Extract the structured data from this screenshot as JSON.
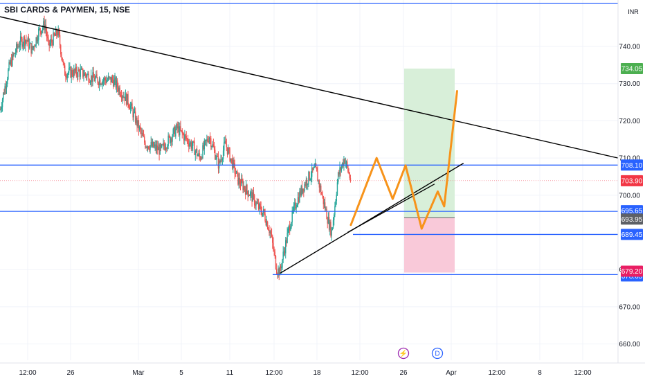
{
  "symbol_title": "SBI CARDS & PAYMEN, 15, NSE",
  "currency": "INR",
  "colors": {
    "up": "#26a69a",
    "down": "#ef5350",
    "hline": "#2962ff",
    "trend": "#000000",
    "projection": "#f7931a",
    "target_zone": "#d8efd9",
    "stop_zone": "#f9c9d9",
    "tag_target": "#4caf50",
    "tag_stop": "#e91e63",
    "tag_last": "#f23645",
    "tag_level": "#2962ff",
    "tag_entry": "#5d6066"
  },
  "chart_data": {
    "type": "candlestick",
    "ylim": [
      656,
      751
    ],
    "y_ticks": [
      "740.00",
      "730.00",
      "720.00",
      "710.00",
      "700.00",
      "680.00",
      "670.00",
      "660.00"
    ],
    "x_ticks": [
      "12:00",
      "26",
      "Mar",
      "5",
      "11",
      "12:00",
      "18",
      "12:00",
      "26",
      "Apr",
      "12:00",
      "8",
      "12:00"
    ],
    "price_path": [
      [
        0,
        723
      ],
      [
        0.03,
        735
      ],
      [
        0.06,
        741
      ],
      [
        0.08,
        742
      ],
      [
        0.1,
        739
      ],
      [
        0.12,
        744
      ],
      [
        0.14,
        746
      ],
      [
        0.15,
        740
      ],
      [
        0.18,
        744
      ],
      [
        0.2,
        733
      ],
      [
        0.25,
        733
      ],
      [
        0.3,
        731
      ],
      [
        0.35,
        731
      ],
      [
        0.4,
        725
      ],
      [
        0.45,
        714
      ],
      [
        0.5,
        712
      ],
      [
        0.55,
        718
      ],
      [
        0.6,
        713
      ],
      [
        0.62,
        710
      ],
      [
        0.65,
        716
      ],
      [
        0.68,
        708
      ],
      [
        0.7,
        714
      ],
      [
        0.72,
        709
      ],
      [
        0.74,
        704
      ],
      [
        0.76,
        702
      ],
      [
        0.78,
        700
      ],
      [
        0.8,
        697
      ],
      [
        0.82,
        695
      ],
      [
        0.84,
        690
      ],
      [
        0.86,
        680
      ],
      [
        0.87,
        679.5
      ],
      [
        0.88,
        684
      ],
      [
        0.9,
        692
      ],
      [
        0.92,
        698
      ],
      [
        0.94,
        702
      ],
      [
        0.96,
        705
      ],
      [
        0.98,
        707
      ],
      [
        1.0,
        700
      ],
      [
        1.02,
        693
      ],
      [
        1.03,
        690
      ],
      [
        1.04,
        697
      ],
      [
        1.05,
        705
      ],
      [
        1.07,
        710
      ],
      [
        1.09,
        703.9
      ]
    ],
    "horizontal_levels": [
      {
        "label": "708.10",
        "value": 708.1
      },
      {
        "label": "695.65",
        "value": 695.65
      },
      {
        "label": "689.45",
        "value": 689.45
      },
      {
        "label": "678.65",
        "value": 678.65
      }
    ],
    "top_line_value": 750,
    "last_price": {
      "label": "703.90",
      "value": 703.9
    },
    "position": {
      "target": {
        "label": "734.05",
        "value": 734.05
      },
      "entry": {
        "label": "693.95",
        "value": 693.95
      },
      "stop": {
        "label": "679.20",
        "value": 679.2
      }
    },
    "trendlines": [
      {
        "name": "resistance",
        "from": [
          0,
          748
        ],
        "to": [
          1.92,
          710
        ]
      },
      {
        "name": "support-long",
        "from": [
          0.87,
          679
        ],
        "to": [
          1.44,
          708.6
        ]
      },
      {
        "name": "support-short",
        "from": [
          1.08,
          690
        ],
        "to": [
          1.35,
          703
        ]
      }
    ],
    "projection_path": [
      [
        1.09,
        692
      ],
      [
        1.17,
        710
      ],
      [
        1.22,
        699
      ],
      [
        1.26,
        708
      ],
      [
        1.31,
        691
      ],
      [
        1.36,
        701
      ],
      [
        1.38,
        697
      ],
      [
        1.42,
        728
      ]
    ],
    "events": [
      "⚡",
      "D"
    ]
  }
}
